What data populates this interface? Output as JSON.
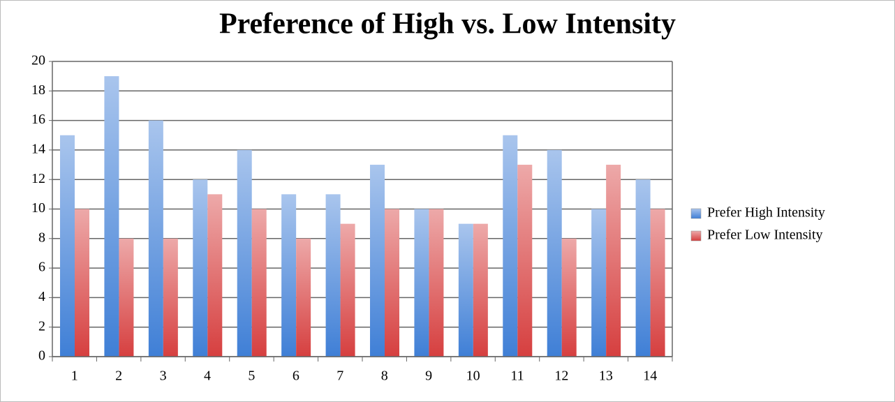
{
  "chart_data": {
    "type": "bar",
    "title": "Preference of High vs. Low Intensity",
    "categories": [
      "1",
      "2",
      "3",
      "4",
      "5",
      "6",
      "7",
      "8",
      "9",
      "10",
      "11",
      "12",
      "13",
      "14"
    ],
    "series": [
      {
        "name": "Prefer High Intensity",
        "color": "#3f7fd6",
        "values": [
          15,
          19,
          16,
          12,
          14,
          11,
          11,
          13,
          10,
          9,
          15,
          14,
          10,
          12
        ]
      },
      {
        "name": "Prefer Low Intensity",
        "color": "#d63f3f",
        "values": [
          10,
          8,
          8,
          11,
          10,
          8,
          9,
          10,
          10,
          9,
          13,
          8,
          13,
          10
        ]
      }
    ],
    "ylim": [
      0,
      20
    ],
    "yticks": [
      0,
      2,
      4,
      6,
      8,
      10,
      12,
      14,
      16,
      18,
      20
    ],
    "grid": true,
    "legend": "right"
  }
}
